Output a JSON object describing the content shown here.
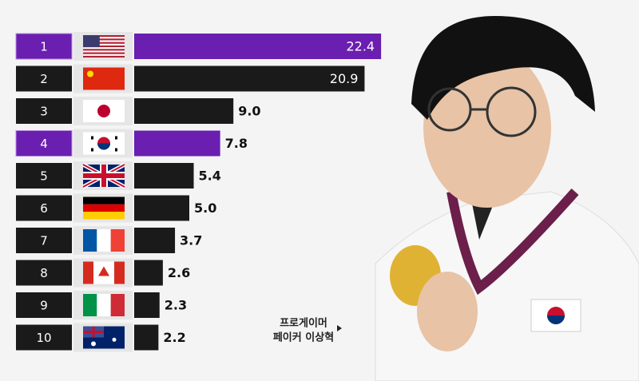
{
  "chart_data": {
    "type": "bar",
    "orientation": "horizontal",
    "categories": [
      "1",
      "2",
      "3",
      "4",
      "5",
      "6",
      "7",
      "8",
      "9",
      "10"
    ],
    "values": [
      22.4,
      20.9,
      9.0,
      7.8,
      5.4,
      5.0,
      3.7,
      2.6,
      2.3,
      2.2
    ],
    "value_labels": [
      "22.4",
      "20.9",
      "9.0",
      "7.8",
      "5.4",
      "5.0",
      "3.7",
      "2.6",
      "2.3",
      "2.2"
    ],
    "colors": [
      "#6a1fb0",
      "#1a1a1a",
      "#1a1a1a",
      "#6a1fb0",
      "#1a1a1a",
      "#1a1a1a",
      "#1a1a1a",
      "#1a1a1a",
      "#1a1a1a",
      "#1a1a1a"
    ]
  },
  "caption": [
    "프로게이머",
    "페이커 이상혁"
  ]
}
